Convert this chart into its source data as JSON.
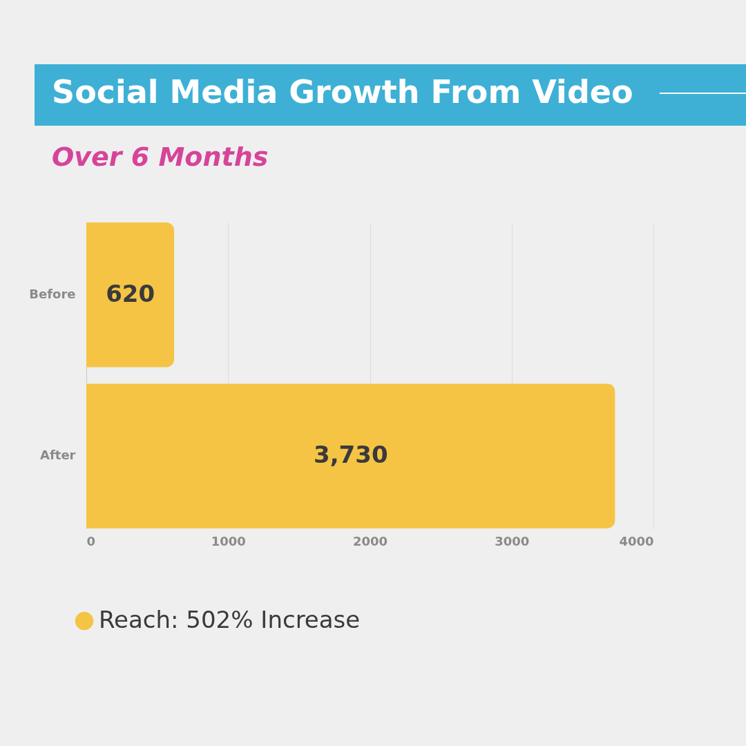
{
  "chart_data": {
    "type": "bar",
    "orientation": "horizontal",
    "title": "Social Media Growth From Video",
    "subtitle": "Over 6 Months",
    "categories": [
      "Before",
      "After"
    ],
    "series": [
      {
        "name": "Reach: 502% Increase",
        "color": "#f5c445",
        "values": [
          620,
          3730
        ],
        "value_labels": [
          "620",
          "3,730"
        ]
      }
    ],
    "xlim": [
      0,
      4000
    ],
    "xticks": [
      0,
      1000,
      2000,
      3000,
      4000
    ],
    "grid": "x",
    "legend": "bottom left"
  }
}
